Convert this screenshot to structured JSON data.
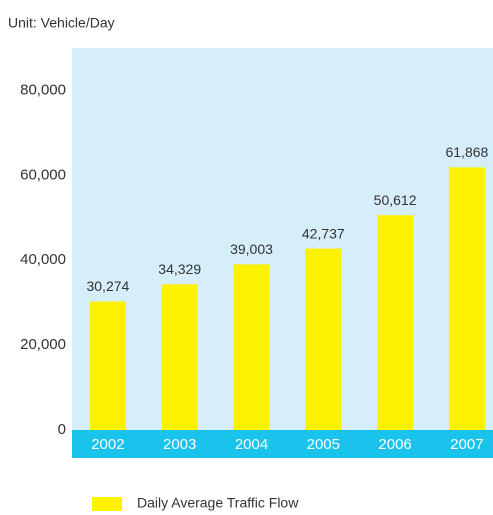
{
  "chart_data": {
    "type": "bar",
    "unit_label": "Unit: Vehicle/Day",
    "categories": [
      "2002",
      "2003",
      "2004",
      "2005",
      "2006",
      "2007"
    ],
    "series": [
      {
        "name": "Daily Average Traffic Flow",
        "color": "#fff200",
        "values": [
          30274,
          34329,
          39003,
          42737,
          50612,
          61868
        ],
        "value_labels": [
          "30,274",
          "34,329",
          "39,003",
          "42,737",
          "50,612",
          "61,868"
        ]
      }
    ],
    "ylim": [
      0,
      90000
    ],
    "yticks": [
      0,
      {
        "value": 20000,
        "label": "20,000"
      },
      {
        "value": 40000,
        "label": "40,000"
      },
      {
        "value": 60000,
        "label": "60,000"
      },
      {
        "value": 80000,
        "label": "80,000"
      }
    ],
    "grid": false,
    "legend": "bottom"
  }
}
